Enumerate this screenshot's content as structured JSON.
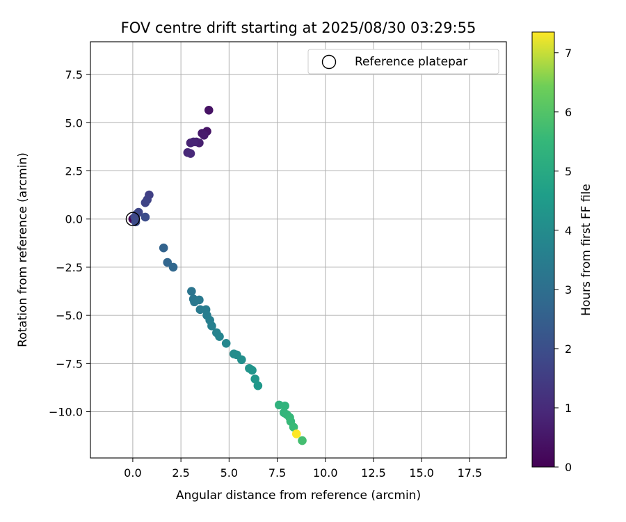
{
  "chart_data": {
    "type": "scatter",
    "title": "FOV centre drift starting at 2025/08/30 03:29:55",
    "xlabel": "Angular distance from reference (arcmin)",
    "ylabel": "Rotation from reference (arcmin)",
    "xlim": [
      -2.2,
      19.4
    ],
    "ylim": [
      -12.4,
      9.2
    ],
    "xticks": [
      0.0,
      2.5,
      5.0,
      7.5,
      10.0,
      12.5,
      15.0,
      17.5
    ],
    "xtick_labels": [
      "0.0",
      "2.5",
      "5.0",
      "7.5",
      "10.0",
      "12.5",
      "15.0",
      "17.5"
    ],
    "yticks": [
      7.5,
      5.0,
      2.5,
      0.0,
      -2.5,
      -5.0,
      -7.5,
      -10.0
    ],
    "ytick_labels": [
      "7.5",
      "5.0",
      "2.5",
      "0.0",
      "−2.5",
      "−5.0",
      "−7.5",
      "−10.0"
    ],
    "grid": true,
    "legend": {
      "position": "top-right",
      "entries": [
        "Reference platepar"
      ]
    },
    "reference_point": {
      "x": 0.0,
      "y": 0.0
    },
    "colorbar": {
      "label": "Hours from first FF file",
      "colormap": "viridis",
      "range": [
        0,
        7.35
      ],
      "ticks": [
        0,
        1,
        2,
        3,
        4,
        5,
        6,
        7
      ],
      "tick_labels": [
        "0",
        "1",
        "2",
        "3",
        "4",
        "5",
        "6",
        "7"
      ]
    },
    "points": [
      {
        "x": 0.0,
        "y": 0.0,
        "c": 0.0
      },
      {
        "x": 3.95,
        "y": 5.65,
        "c": 0.4
      },
      {
        "x": 3.85,
        "y": 4.55,
        "c": 0.45
      },
      {
        "x": 3.6,
        "y": 4.45,
        "c": 0.55
      },
      {
        "x": 3.7,
        "y": 4.35,
        "c": 0.6
      },
      {
        "x": 3.45,
        "y": 3.95,
        "c": 0.7
      },
      {
        "x": 3.3,
        "y": 4.0,
        "c": 0.75
      },
      {
        "x": 3.0,
        "y": 3.95,
        "c": 0.8
      },
      {
        "x": 3.15,
        "y": 4.0,
        "c": 0.85
      },
      {
        "x": 2.85,
        "y": 3.45,
        "c": 0.9
      },
      {
        "x": 3.0,
        "y": 3.4,
        "c": 0.95
      },
      {
        "x": 0.85,
        "y": 1.25,
        "c": 1.6
      },
      {
        "x": 0.75,
        "y": 1.0,
        "c": 1.65
      },
      {
        "x": 0.65,
        "y": 0.85,
        "c": 1.7
      },
      {
        "x": 0.3,
        "y": 0.35,
        "c": 1.75
      },
      {
        "x": 0.2,
        "y": 0.25,
        "c": 1.8
      },
      {
        "x": 0.1,
        "y": 0.1,
        "c": 1.85
      },
      {
        "x": 0.15,
        "y": -0.15,
        "c": 1.9
      },
      {
        "x": 0.65,
        "y": 0.1,
        "c": 1.95
      },
      {
        "x": 1.6,
        "y": -1.5,
        "c": 2.6
      },
      {
        "x": 1.8,
        "y": -2.25,
        "c": 2.7
      },
      {
        "x": 2.1,
        "y": -2.5,
        "c": 2.75
      },
      {
        "x": 3.05,
        "y": -3.75,
        "c": 3.2
      },
      {
        "x": 3.15,
        "y": -4.15,
        "c": 3.25
      },
      {
        "x": 3.2,
        "y": -4.3,
        "c": 3.3
      },
      {
        "x": 3.45,
        "y": -4.2,
        "c": 3.35
      },
      {
        "x": 3.5,
        "y": -4.7,
        "c": 3.4
      },
      {
        "x": 3.8,
        "y": -4.7,
        "c": 3.45
      },
      {
        "x": 3.85,
        "y": -5.0,
        "c": 3.5
      },
      {
        "x": 4.0,
        "y": -5.25,
        "c": 3.55
      },
      {
        "x": 4.1,
        "y": -5.55,
        "c": 3.6
      },
      {
        "x": 4.35,
        "y": -5.9,
        "c": 3.7
      },
      {
        "x": 4.5,
        "y": -6.1,
        "c": 3.75
      },
      {
        "x": 4.85,
        "y": -6.45,
        "c": 3.85
      },
      {
        "x": 5.25,
        "y": -7.0,
        "c": 4.0
      },
      {
        "x": 5.4,
        "y": -7.05,
        "c": 4.05
      },
      {
        "x": 5.65,
        "y": -7.3,
        "c": 4.1
      },
      {
        "x": 6.05,
        "y": -7.75,
        "c": 4.25
      },
      {
        "x": 6.2,
        "y": -7.85,
        "c": 4.3
      },
      {
        "x": 6.35,
        "y": -8.3,
        "c": 4.35
      },
      {
        "x": 6.5,
        "y": -8.65,
        "c": 4.4
      },
      {
        "x": 7.6,
        "y": -9.65,
        "c": 5.3
      },
      {
        "x": 7.9,
        "y": -9.7,
        "c": 5.35
      },
      {
        "x": 7.85,
        "y": -10.05,
        "c": 5.4
      },
      {
        "x": 8.0,
        "y": -10.15,
        "c": 5.45
      },
      {
        "x": 8.15,
        "y": -10.3,
        "c": 5.5
      },
      {
        "x": 8.2,
        "y": -10.5,
        "c": 5.55
      },
      {
        "x": 8.35,
        "y": -10.8,
        "c": 5.6
      },
      {
        "x": 8.8,
        "y": -11.5,
        "c": 5.75
      },
      {
        "x": 8.5,
        "y": -11.15,
        "c": 7.35
      }
    ]
  }
}
